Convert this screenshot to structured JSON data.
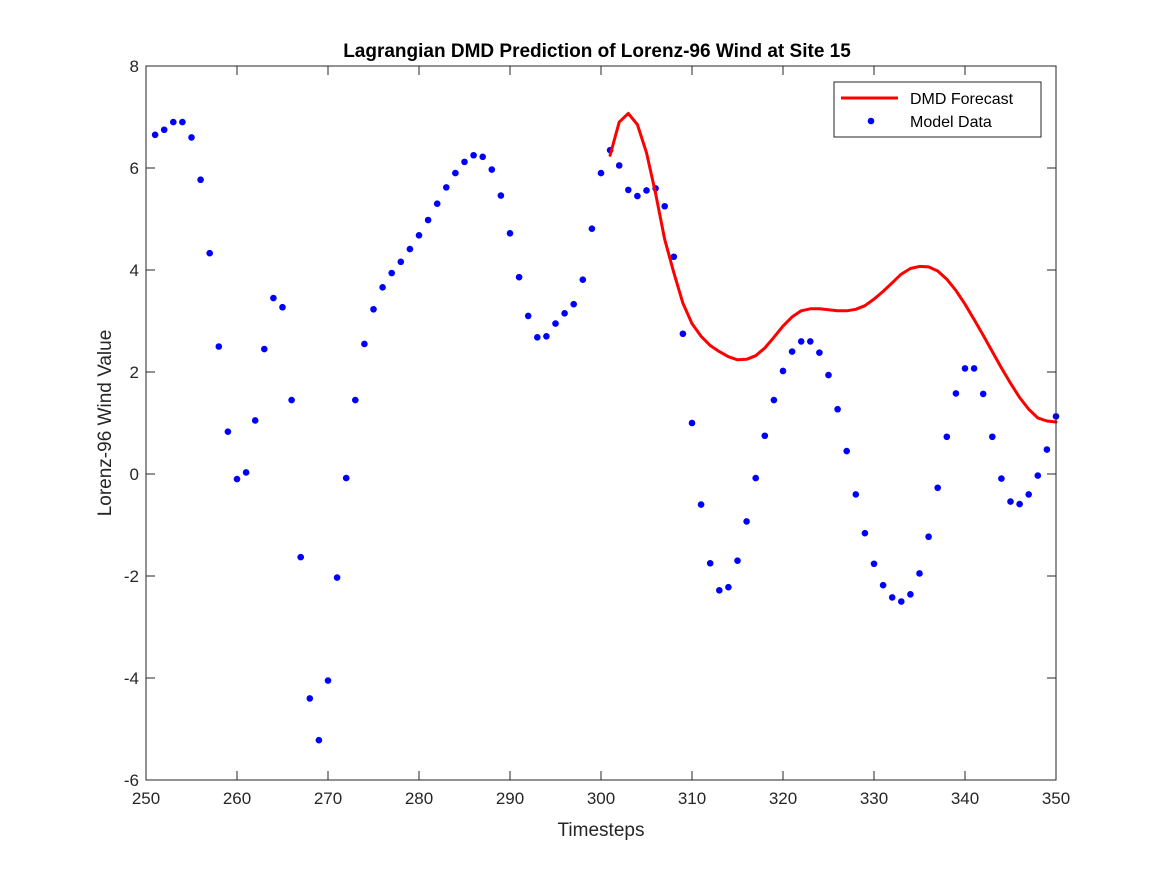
{
  "chart_data": {
    "type": "line",
    "title": "Lagrangian DMD Prediction of Lorenz-96 Wind at Site 15",
    "xlabel": "Timesteps",
    "ylabel": "Lorenz-96 Wind Value",
    "xlim": [
      250,
      350
    ],
    "ylim": [
      -6,
      8
    ],
    "xticks": [
      "250",
      "260",
      "270",
      "280",
      "290",
      "300",
      "310",
      "320",
      "330",
      "340",
      "350"
    ],
    "yticks": [
      "-6",
      "-4",
      "-2",
      "0",
      "2",
      "4",
      "6",
      "8"
    ],
    "grid": false,
    "legend_position": "top-right",
    "series": [
      {
        "name": "DMD Forecast",
        "kind": "line",
        "color": "#ff0000",
        "x": [
          301,
          302,
          303,
          304,
          305,
          306,
          307,
          308,
          309,
          310,
          311,
          312,
          313,
          314,
          315,
          316,
          317,
          318,
          319,
          320,
          321,
          322,
          323,
          324,
          325,
          326,
          327,
          328,
          329,
          330,
          331,
          332,
          333,
          334,
          335,
          336,
          337,
          338,
          339,
          340,
          341,
          342,
          343,
          344,
          345,
          346,
          347,
          348,
          349,
          350
        ],
        "y": [
          6.25,
          6.9,
          7.07,
          6.85,
          6.3,
          5.5,
          4.6,
          3.95,
          3.35,
          2.95,
          2.7,
          2.52,
          2.4,
          2.3,
          2.24,
          2.25,
          2.32,
          2.47,
          2.68,
          2.9,
          3.08,
          3.2,
          3.24,
          3.24,
          3.22,
          3.2,
          3.2,
          3.23,
          3.3,
          3.43,
          3.58,
          3.75,
          3.92,
          4.03,
          4.07,
          4.06,
          3.98,
          3.82,
          3.6,
          3.33,
          3.03,
          2.72,
          2.4,
          2.08,
          1.78,
          1.5,
          1.27,
          1.1,
          1.04,
          1.02
        ]
      },
      {
        "name": "Model Data",
        "kind": "scatter",
        "color": "#0000ff",
        "x": [
          251,
          252,
          253,
          254,
          255,
          256,
          257,
          258,
          259,
          260,
          261,
          262,
          263,
          264,
          265,
          266,
          267,
          268,
          269,
          270,
          271,
          272,
          273,
          274,
          275,
          276,
          277,
          278,
          279,
          280,
          281,
          282,
          283,
          284,
          285,
          286,
          287,
          288,
          289,
          290,
          291,
          292,
          293,
          294,
          295,
          296,
          297,
          298,
          299,
          300,
          301,
          302,
          303,
          304,
          305,
          306,
          307,
          308,
          309,
          310,
          311,
          312,
          313,
          314,
          315,
          316,
          317,
          318,
          319,
          320,
          321,
          322,
          323,
          324,
          325,
          326,
          327,
          328,
          329,
          330,
          331,
          332,
          333,
          334,
          335,
          336,
          337,
          338,
          339,
          340,
          341,
          342,
          343,
          344,
          345,
          346,
          347,
          348,
          349,
          350
        ],
        "y": [
          6.65,
          6.75,
          6.9,
          6.9,
          6.6,
          5.77,
          4.33,
          2.5,
          0.83,
          -0.1,
          0.03,
          1.05,
          2.45,
          3.45,
          3.27,
          1.45,
          -1.63,
          -4.4,
          -5.22,
          -4.05,
          -2.03,
          -0.08,
          1.45,
          2.55,
          3.23,
          3.66,
          3.94,
          4.16,
          4.41,
          4.68,
          4.98,
          5.3,
          5.62,
          5.9,
          6.12,
          6.25,
          6.22,
          5.97,
          5.46,
          4.72,
          3.86,
          3.1,
          2.68,
          2.7,
          2.95,
          3.15,
          3.33,
          3.81,
          4.81,
          5.9,
          6.35,
          6.05,
          5.57,
          5.45,
          5.56,
          5.6,
          5.25,
          4.26,
          2.75,
          1.0,
          -0.6,
          -1.75,
          -2.28,
          -2.22,
          -1.7,
          -0.93,
          -0.08,
          0.75,
          1.45,
          2.02,
          2.4,
          2.6,
          2.6,
          2.38,
          1.94,
          1.27,
          0.45,
          -0.4,
          -1.16,
          -1.76,
          -2.18,
          -2.42,
          -2.5,
          -2.36,
          -1.95,
          -1.23,
          -0.27,
          0.73,
          1.58,
          2.07,
          2.07,
          1.57,
          0.73,
          -0.09,
          -0.54,
          -0.59,
          -0.4,
          -0.03,
          0.48,
          1.13
        ]
      }
    ]
  }
}
